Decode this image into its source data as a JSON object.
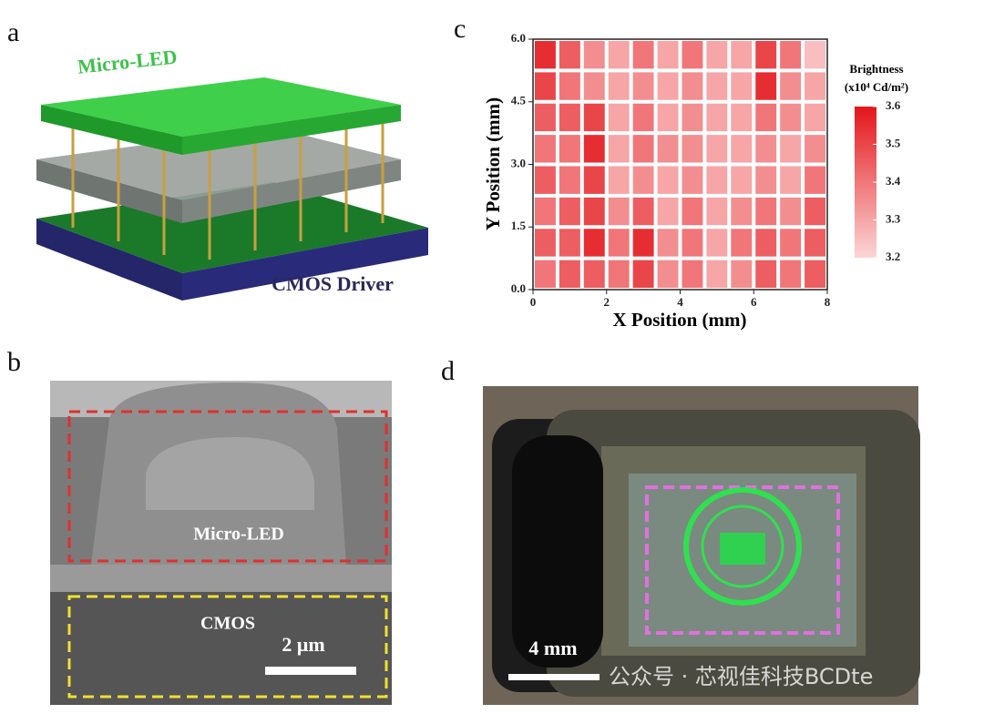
{
  "panels": {
    "a": {
      "label": "a",
      "top_text": "Micro-LED",
      "bottom_text": "CMOS Driver"
    },
    "b": {
      "label": "b",
      "box1_text": "Micro-LED",
      "box2_text": "CMOS",
      "scale_text": "2 μm"
    },
    "d": {
      "label": "d",
      "scale_text": "4 mm",
      "watermark": "公众号 · 芯视佳科技BCDte"
    }
  },
  "chart_data": {
    "type": "heatmap",
    "label": "c",
    "x_label": "X Position (mm)",
    "y_label": "Y Position (mm)",
    "colorbar_title": "Brightness",
    "colorbar_unit": "(x10⁴ Cd/m²)",
    "xlim": [
      0,
      8
    ],
    "ylim": [
      0,
      6
    ],
    "xticks": [
      0,
      2,
      4,
      6,
      8
    ],
    "yticks": [
      {
        "value": 0,
        "label": "0.0"
      },
      {
        "value": 1.5,
        "label": "1.5"
      },
      {
        "value": 3,
        "label": "3.0"
      },
      {
        "value": 4.5,
        "label": "4.5"
      },
      {
        "value": 6,
        "label": "6.0"
      }
    ],
    "zlim": [
      3.2,
      3.6
    ],
    "zticks": [
      3.2,
      3.3,
      3.4,
      3.5,
      3.6
    ],
    "colormap": [
      "#fcd6d6",
      "#e3161b"
    ],
    "values": [
      [
        3.55,
        3.45,
        3.35,
        3.3,
        3.4,
        3.3,
        3.4,
        3.3,
        3.3,
        3.5,
        3.4,
        3.25
      ],
      [
        3.5,
        3.4,
        3.35,
        3.3,
        3.35,
        3.3,
        3.35,
        3.3,
        3.3,
        3.55,
        3.35,
        3.3
      ],
      [
        3.45,
        3.45,
        3.5,
        3.3,
        3.4,
        3.3,
        3.35,
        3.3,
        3.3,
        3.4,
        3.35,
        3.3
      ],
      [
        3.4,
        3.4,
        3.55,
        3.3,
        3.4,
        3.35,
        3.35,
        3.3,
        3.3,
        3.35,
        3.3,
        3.35
      ],
      [
        3.45,
        3.4,
        3.5,
        3.3,
        3.35,
        3.3,
        3.35,
        3.3,
        3.3,
        3.35,
        3.3,
        3.4
      ],
      [
        3.4,
        3.45,
        3.5,
        3.35,
        3.45,
        3.3,
        3.4,
        3.3,
        3.35,
        3.4,
        3.35,
        3.45
      ],
      [
        3.45,
        3.45,
        3.55,
        3.4,
        3.55,
        3.35,
        3.4,
        3.3,
        3.4,
        3.45,
        3.4,
        3.45
      ],
      [
        3.4,
        3.45,
        3.45,
        3.4,
        3.5,
        3.35,
        3.4,
        3.3,
        3.35,
        3.45,
        3.4,
        3.45
      ]
    ]
  }
}
